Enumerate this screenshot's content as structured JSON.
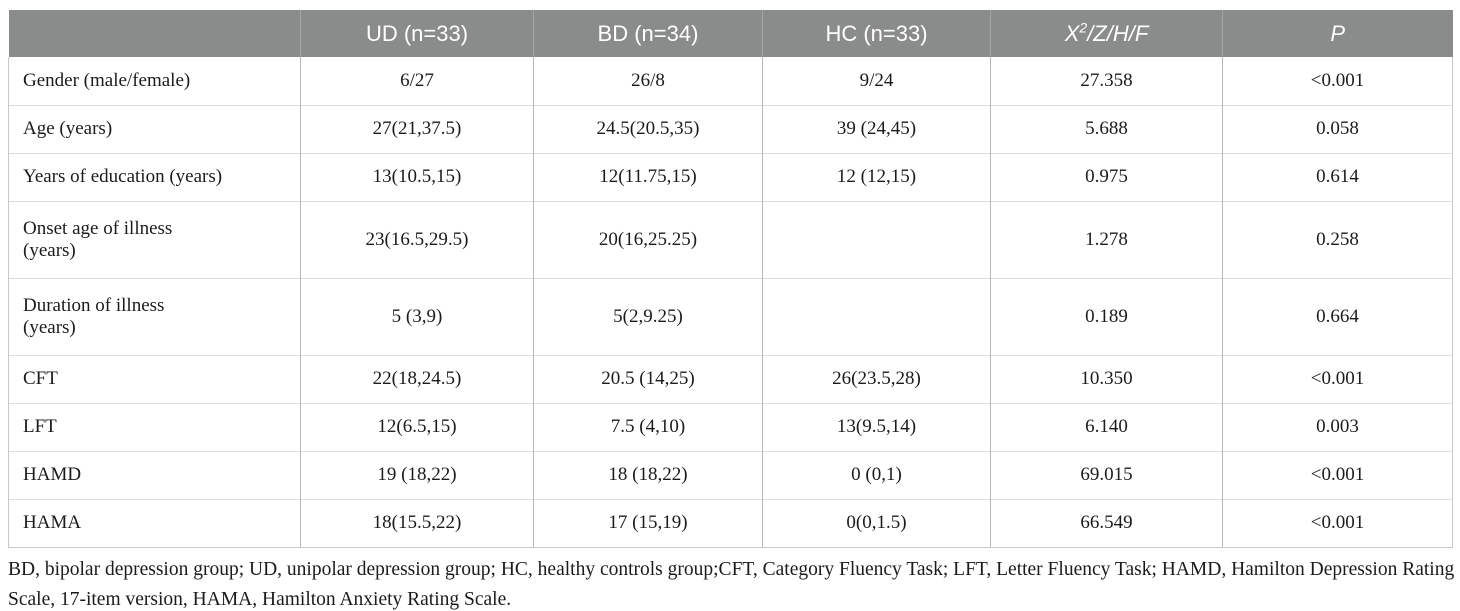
{
  "table": {
    "header": {
      "row_label": "",
      "ud_label": "UD (n=33)",
      "bd_label": "BD (n=34)",
      "hc_label": "HC (n=33)",
      "stat": {
        "base": "X",
        "sup": "2",
        "rest": "/Z/H/F"
      },
      "p_label": "P"
    },
    "rows": [
      {
        "label": "Gender (male/female)",
        "ud": "6/27",
        "bd": "26/8",
        "hc": "9/24",
        "stat": "27.358",
        "p": "<0.001"
      },
      {
        "label": "Age (years)",
        "ud": "27(21,37.5)",
        "bd": "24.5(20.5,35)",
        "hc": "39 (24,45)",
        "stat": "5.688",
        "p": "0.058"
      },
      {
        "label": "Years of education (years)",
        "ud": "13(10.5,15)",
        "bd": "12(11.75,15)",
        "hc": "12 (12,15)",
        "stat": "0.975",
        "p": "0.614"
      },
      {
        "label": "Onset age of illness\n(years)",
        "ud": "23(16.5,29.5)",
        "bd": "20(16,25.25)",
        "hc": "",
        "stat": "1.278",
        "p": "0.258"
      },
      {
        "label": "Duration of illness\n(years)",
        "ud": "5 (3,9)",
        "bd": "5(2,9.25)",
        "hc": "",
        "stat": "0.189",
        "p": "0.664"
      },
      {
        "label": "CFT",
        "ud": "22(18,24.5)",
        "bd": "20.5 (14,25)",
        "hc": "26(23.5,28)",
        "stat": "10.350",
        "p": "<0.001"
      },
      {
        "label": "LFT",
        "ud": "12(6.5,15)",
        "bd": "7.5 (4,10)",
        "hc": "13(9.5,14)",
        "stat": "6.140",
        "p": "0.003"
      },
      {
        "label": "HAMD",
        "ud": "19 (18,22)",
        "bd": "18 (18,22)",
        "hc": "0 (0,1)",
        "stat": "69.015",
        "p": "<0.001"
      },
      {
        "label": "HAMA",
        "ud": "18(15.5,22)",
        "bd": "17 (15,19)",
        "hc": "0(0,1.5)",
        "stat": "66.549",
        "p": "<0.001"
      }
    ],
    "footnote": "BD, bipolar depression group; UD, unipolar depression group; HC, healthy controls group;CFT, Category Fluency Task; LFT, Letter Fluency Task; HAMD, Hamilton Depression Rating Scale, 17-item version, HAMA, Hamilton Anxiety Rating Scale."
  },
  "colors": {
    "header_bg": "#8a8b8b",
    "header_text": "#ffffff",
    "body_text": "#1b1b1b",
    "divider_vertical": "#b5b8b7",
    "divider_horizontal": "#dcdcdc"
  }
}
